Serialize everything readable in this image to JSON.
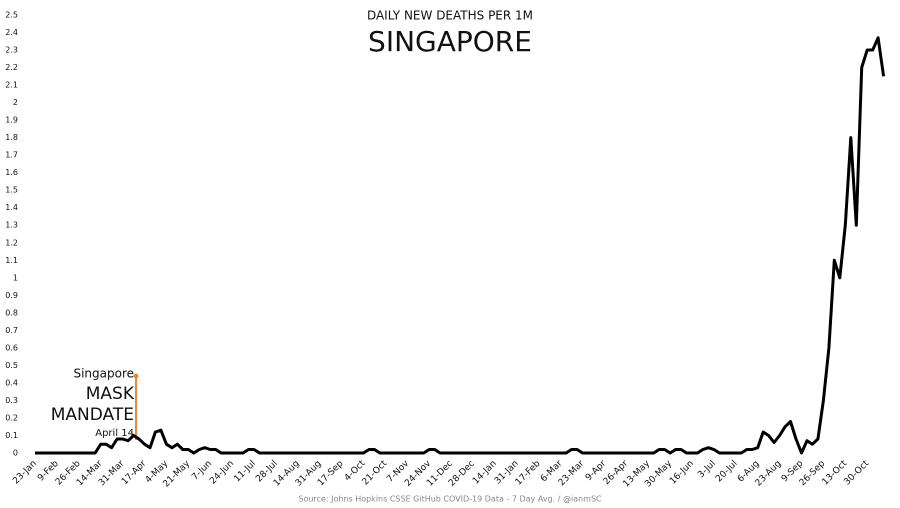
{
  "chart_data": {
    "type": "line",
    "title": "DAILY NEW DEATHS PER 1M",
    "subtitle": "SINGAPORE",
    "source": "Source: Johns Hopkins CSSE GitHub  COVID-19 Data - 7 Day Avg. / @ianmSC",
    "annotations": [
      "Singapore",
      "MASK",
      "MANDATE",
      "April 14"
    ],
    "color": "#000000",
    "categories": [
      "23-Jan",
      null,
      null,
      null,
      "9-Feb",
      null,
      null,
      null,
      "26-Feb",
      null,
      null,
      null,
      "14-Mar",
      null,
      null,
      null,
      "31-Mar",
      null,
      null,
      null,
      "17-Apr",
      null,
      null,
      null,
      "4-May",
      null,
      null,
      null,
      "21-May",
      null,
      null,
      null,
      "7-Jun",
      null,
      null,
      null,
      "24-Jun",
      null,
      null,
      null,
      "11-Jul",
      null,
      null,
      null,
      "28-Jul",
      null,
      null,
      null,
      "14-Aug",
      null,
      null,
      null,
      "31-Aug",
      null,
      null,
      null,
      "17-Sep",
      null,
      null,
      null,
      "4-Oct",
      null,
      null,
      null,
      "21-Oct",
      null,
      null,
      null,
      "7-Nov",
      null,
      null,
      null,
      "24-Nov",
      null,
      null,
      null,
      "11-Dec",
      null,
      null,
      null,
      "28-Dec",
      null,
      null,
      null,
      "14-Jan",
      null,
      null,
      null,
      "31-Jan",
      null,
      null,
      null,
      "17-Feb",
      null,
      null,
      null,
      "6-Mar",
      null,
      null,
      null,
      "23-Mar",
      null,
      null,
      null,
      "9-Apr",
      null,
      null,
      null,
      "26-Apr",
      null,
      null,
      null,
      "13-May",
      null,
      null,
      null,
      "30-May",
      null,
      null,
      null,
      "16-Jun",
      null,
      null,
      null,
      "3-Jul",
      null,
      null,
      null,
      "20-Jul",
      null,
      null,
      null,
      "6-Aug",
      null,
      null,
      null,
      "23-Aug",
      null,
      null,
      null,
      "9-Sep",
      null,
      null,
      null,
      "26-Sep",
      null,
      null,
      null,
      "13-Oct",
      null,
      null,
      null,
      "30-Oct",
      null,
      null,
      null
    ],
    "values": [
      0,
      0,
      0,
      0,
      0,
      0,
      0,
      0,
      0,
      0,
      0,
      0,
      0.05,
      0.05,
      0.03,
      0.08,
      0.08,
      0.07,
      0.1,
      0.08,
      0.05,
      0.03,
      0.12,
      0.13,
      0.05,
      0.03,
      0.05,
      0.02,
      0.02,
      0,
      0.02,
      0.03,
      0.02,
      0.02,
      0,
      0,
      0,
      0,
      0,
      0.02,
      0.02,
      0,
      0,
      0,
      0,
      0,
      0,
      0,
      0,
      0,
      0,
      0,
      0,
      0,
      0,
      0,
      0,
      0,
      0,
      0,
      0,
      0.02,
      0.02,
      0,
      0,
      0,
      0,
      0,
      0,
      0,
      0,
      0,
      0.02,
      0.02,
      0,
      0,
      0,
      0,
      0,
      0,
      0,
      0,
      0,
      0,
      0,
      0,
      0,
      0,
      0,
      0,
      0,
      0,
      0,
      0,
      0,
      0,
      0,
      0,
      0.02,
      0.02,
      0,
      0,
      0,
      0,
      0,
      0,
      0,
      0,
      0,
      0,
      0,
      0,
      0,
      0,
      0.02,
      0.02,
      0,
      0.02,
      0.02,
      0,
      0,
      0,
      0.02,
      0.03,
      0.02,
      0,
      0,
      0,
      0,
      0,
      0.02,
      0.02,
      0.03,
      0.12,
      0.1,
      0.06,
      0.1,
      0.15,
      0.18,
      0.08,
      0,
      0.07,
      0.05,
      0.08,
      0.3,
      0.6,
      1.1,
      1.0,
      1.3,
      1.8,
      1.3,
      2.2,
      2.3,
      2.3,
      2.37,
      2.15
    ],
    "ylim": [
      0,
      2.5
    ],
    "yticks": [
      0,
      0.1,
      0.2,
      0.3,
      0.4,
      0.5,
      0.6,
      0.7,
      0.8,
      0.9,
      1,
      1.1,
      1.2,
      1.3,
      1.4,
      1.5,
      1.6,
      1.7,
      1.8,
      1.9,
      2,
      2.1,
      2.2,
      2.3,
      2.4,
      2.5
    ],
    "grid": false
  }
}
